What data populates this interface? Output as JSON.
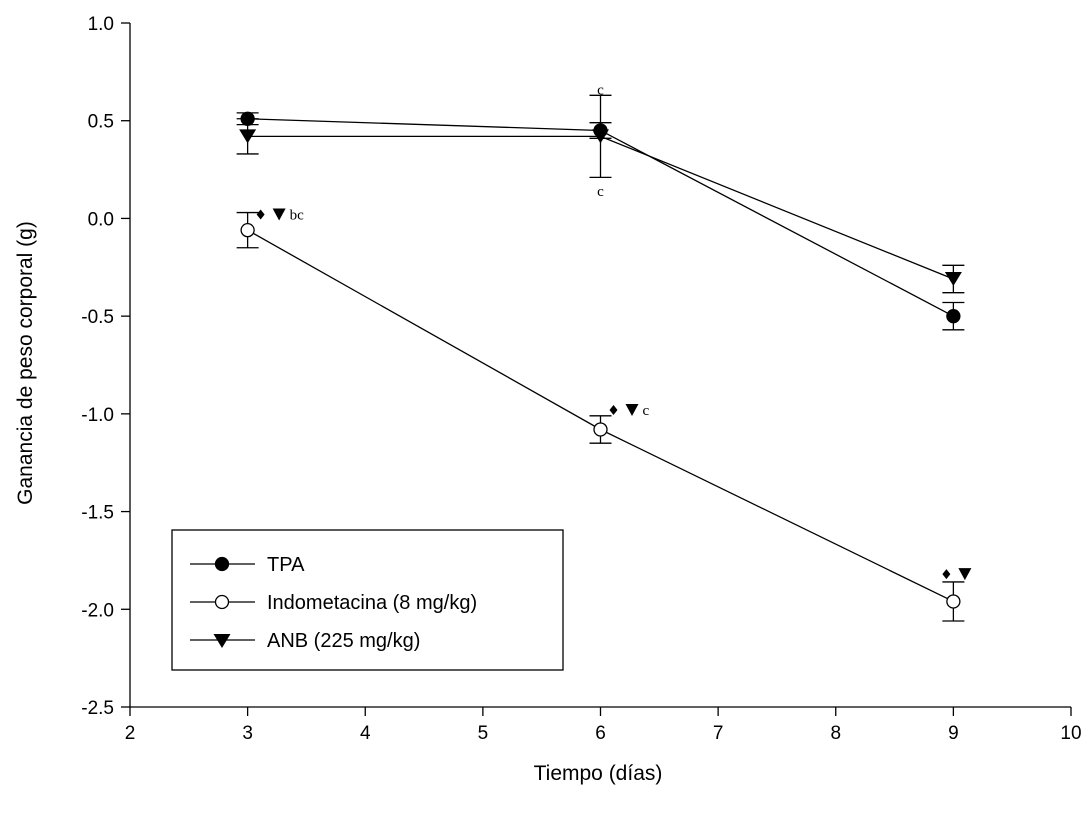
{
  "chart_data": {
    "type": "line",
    "xlabel": "Tiempo (días)",
    "ylabel": "Ganancia de peso corporal (g)",
    "xlim": [
      2,
      10
    ],
    "ylim": [
      -2.5,
      1.0
    ],
    "x_ticks": [
      "2",
      "3",
      "4",
      "5",
      "6",
      "7",
      "8",
      "9",
      "10"
    ],
    "y_ticks": [
      "-2.5",
      "-2.0",
      "-1.5",
      "-1.0",
      "-0.5",
      "0.0",
      "0.5",
      "1.0"
    ],
    "x": [
      3,
      6,
      9
    ],
    "legend_position": "bottom-left",
    "series": [
      {
        "name": "TPA",
        "marker": "filled-circle",
        "values": [
          0.51,
          0.45,
          -0.5
        ],
        "errors": [
          0.03,
          0.04,
          0.07
        ]
      },
      {
        "name": "Indometacina (8 mg/kg)",
        "marker": "open-circle",
        "values": [
          -0.06,
          -1.08,
          -1.96
        ],
        "errors": [
          0.09,
          0.07,
          0.1
        ]
      },
      {
        "name": "ANB (225 mg/kg)",
        "marker": "filled-triangle-down",
        "values": [
          0.42,
          0.42,
          -0.31
        ],
        "errors": [
          0.09,
          0.21,
          0.07
        ]
      }
    ],
    "annotations": [
      {
        "x": 3,
        "y": 0.02,
        "symbols": true,
        "text": "bc",
        "offset_x": 10
      },
      {
        "x": 6,
        "y": -0.98,
        "symbols": true,
        "text": "c",
        "offset_x": 10
      },
      {
        "x": 9,
        "y": -1.82,
        "symbols": true,
        "text": "",
        "offset_x": -10
      },
      {
        "x": 6,
        "y": 0.66,
        "symbols": false,
        "text": "c",
        "offset_x": 0
      },
      {
        "x": 6,
        "y": 0.14,
        "symbols": false,
        "text": "c",
        "offset_x": 0
      }
    ]
  }
}
